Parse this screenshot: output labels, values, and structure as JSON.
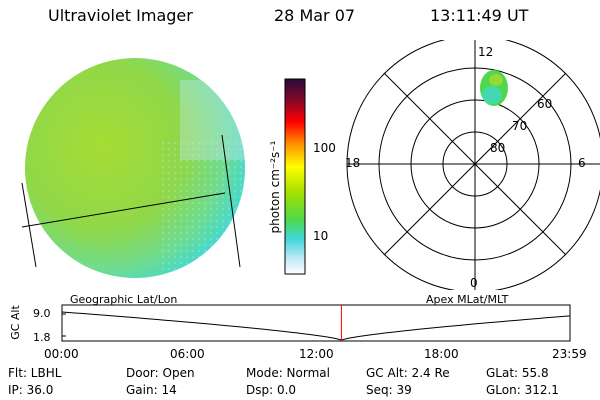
{
  "header": {
    "title": "Ultraviolet Imager",
    "date": "28 Mar 07",
    "time": "13:11:49 UT"
  },
  "colorbar": {
    "unit_label": "photon cm⁻²s⁻¹",
    "ticks": [
      "100",
      "10"
    ]
  },
  "polar": {
    "mlt_labels": [
      "12",
      "18",
      "6",
      "0"
    ],
    "lat_labels": [
      "60",
      "70",
      "80"
    ]
  },
  "timeline": {
    "left_title": "Geographic Lat/Lon",
    "right_title": "Apex MLat/MLT",
    "axis_label": "GC Alt",
    "y_ticks": [
      "9.0",
      "1.8"
    ],
    "x_ticks": [
      "00:00",
      "06:00",
      "12:00",
      "18:00",
      "23:59"
    ],
    "cursor_fraction": 0.55
  },
  "status": {
    "filter": "Flt: LBHL",
    "ip": "IP: 36.0",
    "door": "Door: Open",
    "gain": "Gain: 14",
    "mode": "Mode: Normal",
    "dsp": "Dsp:      0.0",
    "gc_alt": "GC Alt: 2.4 Re",
    "seq": "Seq: 39",
    "glat": "GLat:    55.8",
    "glon": "GLon: 312.1"
  },
  "colors": {
    "earth_green": "#9bd93a",
    "cyan": "#3fd8d8",
    "cursor": "#ff0000"
  }
}
